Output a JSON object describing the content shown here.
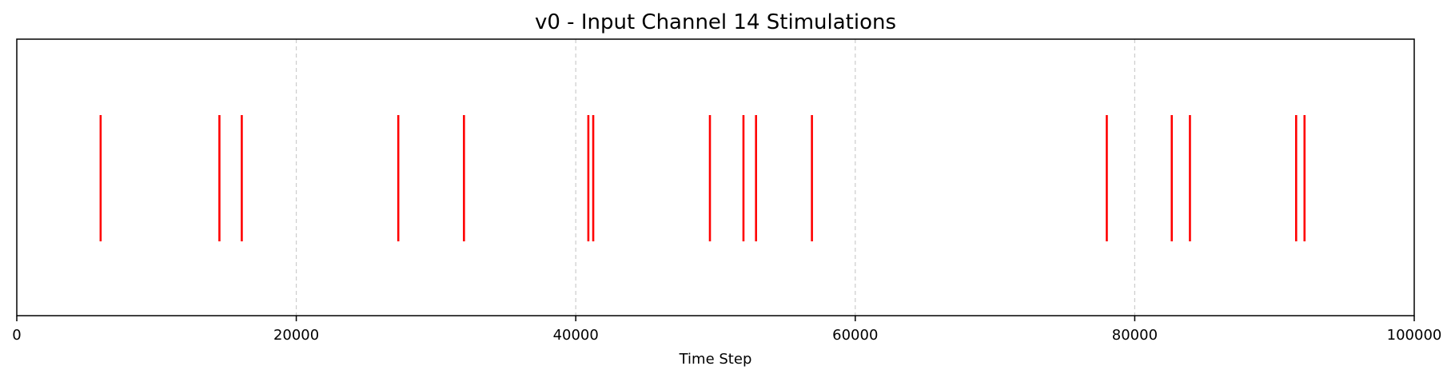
{
  "chart_data": {
    "type": "event_plot",
    "title": "v0 - Input Channel 14 Stimulations",
    "xlabel": "Time Step",
    "ylabel": "",
    "xlim": [
      0,
      100000
    ],
    "xticks": [
      0,
      20000,
      40000,
      60000,
      80000,
      100000
    ],
    "xtick_labels": [
      "0",
      "20000",
      "40000",
      "60000",
      "80000",
      "100000"
    ],
    "y_ticks_visible": false,
    "grid": {
      "x": true,
      "y": false,
      "style": "dashed"
    },
    "event_color": "#ff0000",
    "grid_color": "#cccccc",
    "events": [
      6000,
      14500,
      16100,
      27300,
      32000,
      40900,
      41250,
      49600,
      52000,
      52900,
      56900,
      78000,
      82650,
      83950,
      91550,
      92150
    ]
  }
}
